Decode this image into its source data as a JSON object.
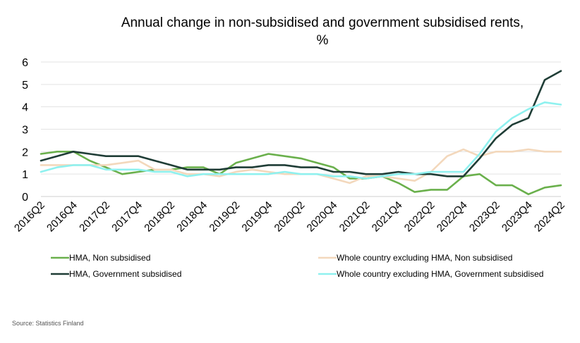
{
  "chart_data": {
    "type": "line",
    "title": "Annual change in non-subsidised and government subsidised rents, %",
    "title_lines": [
      "Annual change in non-subsidised and government subsidised rents,",
      "%"
    ],
    "ylim": [
      0,
      6
    ],
    "yticks": [
      0,
      1,
      2,
      3,
      4,
      5,
      6
    ],
    "grid": true,
    "legend_position": "bottom",
    "categories": [
      "2016Q2",
      "2016Q3",
      "2016Q4",
      "2017Q1",
      "2017Q2",
      "2017Q3",
      "2017Q4",
      "2018Q1",
      "2018Q2",
      "2018Q3",
      "2018Q4",
      "2019Q1",
      "2019Q2",
      "2019Q3",
      "2019Q4",
      "2020Q1",
      "2020Q2",
      "2020Q3",
      "2020Q4",
      "2021Q1",
      "2021Q2",
      "2021Q3",
      "2021Q4",
      "2022Q1",
      "2022Q2",
      "2022Q3",
      "2022Q4",
      "2023Q1",
      "2023Q2",
      "2023Q3",
      "2023Q4",
      "2024Q1",
      "2024Q2"
    ],
    "x_tick_labels": [
      "2016Q2",
      "2016Q4",
      "2017Q2",
      "2017Q4",
      "2018Q2",
      "2018Q4",
      "2019Q2",
      "2019Q4",
      "2020Q2",
      "2020Q4",
      "2021Q2",
      "2021Q4",
      "2022Q2",
      "2022Q4",
      "2023Q2",
      "2023Q4",
      "2024Q2"
    ],
    "series": [
      {
        "name": "HMA, Non subsidised",
        "color": "#6ab04c",
        "values": [
          1.9,
          2.0,
          2.0,
          1.6,
          1.3,
          1.0,
          1.1,
          1.2,
          1.2,
          1.3,
          1.3,
          1.0,
          1.5,
          1.7,
          1.9,
          1.8,
          1.7,
          1.5,
          1.3,
          0.8,
          0.8,
          0.9,
          0.6,
          0.2,
          0.3,
          0.3,
          0.9,
          1.0,
          0.5,
          0.5,
          0.1,
          0.4,
          0.5
        ]
      },
      {
        "name": "Whole country excluding HMA, Non subsidised",
        "color": "#f3d8bc",
        "values": [
          1.4,
          1.4,
          1.4,
          1.4,
          1.4,
          1.5,
          1.6,
          1.2,
          1.2,
          1.0,
          1.0,
          0.9,
          1.1,
          1.2,
          1.1,
          1.0,
          1.0,
          1.0,
          0.8,
          0.6,
          0.9,
          0.9,
          0.8,
          0.7,
          1.1,
          1.8,
          2.1,
          1.8,
          2.0,
          2.0,
          2.1,
          2.0,
          2.0
        ]
      },
      {
        "name": "HMA, Government subsidised",
        "color": "#1f3d36",
        "values": [
          1.6,
          1.8,
          2.0,
          1.9,
          1.8,
          1.8,
          1.8,
          1.6,
          1.4,
          1.2,
          1.2,
          1.2,
          1.3,
          1.3,
          1.4,
          1.4,
          1.3,
          1.3,
          1.1,
          1.1,
          1.0,
          1.0,
          1.1,
          1.0,
          1.0,
          0.9,
          0.9,
          1.7,
          2.6,
          3.2,
          3.5,
          5.2,
          5.6
        ]
      },
      {
        "name": "Whole country excluding HMA, Government subsidised",
        "color": "#8ff1ef",
        "values": [
          1.1,
          1.3,
          1.4,
          1.4,
          1.2,
          1.2,
          1.2,
          1.1,
          1.1,
          0.9,
          1.0,
          1.0,
          1.0,
          1.0,
          1.0,
          1.1,
          1.0,
          1.0,
          0.9,
          0.9,
          0.8,
          0.9,
          1.0,
          1.0,
          1.1,
          1.1,
          1.1,
          1.9,
          2.9,
          3.5,
          3.9,
          4.2,
          4.1
        ]
      }
    ]
  },
  "source": "Source: Statistics Finland"
}
